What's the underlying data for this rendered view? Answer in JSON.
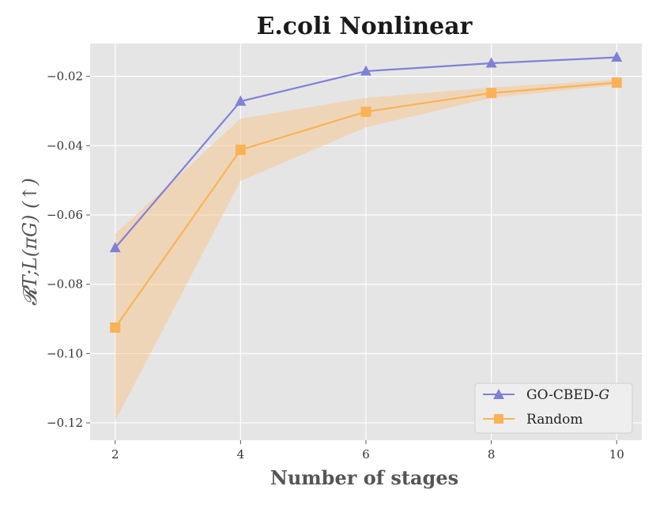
{
  "chart_data": {
    "type": "line",
    "title": "E.coli Nonlinear",
    "xlabel": "Number of stages",
    "ylabel": "𝓡T;L(πG) (↑)",
    "x": [
      2,
      4,
      6,
      8,
      10
    ],
    "xlim": [
      1.6,
      10.4
    ],
    "ylim": [
      -0.125,
      -0.0105
    ],
    "xticks": [
      2,
      4,
      6,
      8,
      10
    ],
    "xtick_labels": [
      "2",
      "4",
      "6",
      "8",
      "10"
    ],
    "yticks": [
      -0.12,
      -0.1,
      -0.08,
      -0.06,
      -0.04,
      -0.02
    ],
    "ytick_labels": [
      "−0.12",
      "−0.10",
      "−0.08",
      "−0.06",
      "−0.04",
      "−0.02"
    ],
    "grid": true,
    "legend_position": "bottom-right",
    "series": [
      {
        "name": "GO-CBED-G",
        "legend_prefix": "GO-CBED-",
        "legend_italic": "G",
        "values": [
          -0.0695,
          -0.0272,
          -0.0185,
          -0.0162,
          -0.0145
        ],
        "color": "#8080d8",
        "marker": "triangle"
      },
      {
        "name": "Random",
        "values": [
          -0.0925,
          -0.0412,
          -0.0302,
          -0.0248,
          -0.0218
        ],
        "band_upper": [
          -0.0655,
          -0.0322,
          -0.0262,
          -0.0232,
          -0.021
        ],
        "band_lower": [
          -0.1195,
          -0.0502,
          -0.0347,
          -0.0262,
          -0.0225
        ],
        "color": "#f9b356",
        "band_color": "#f7c994",
        "marker": "square"
      }
    ]
  }
}
